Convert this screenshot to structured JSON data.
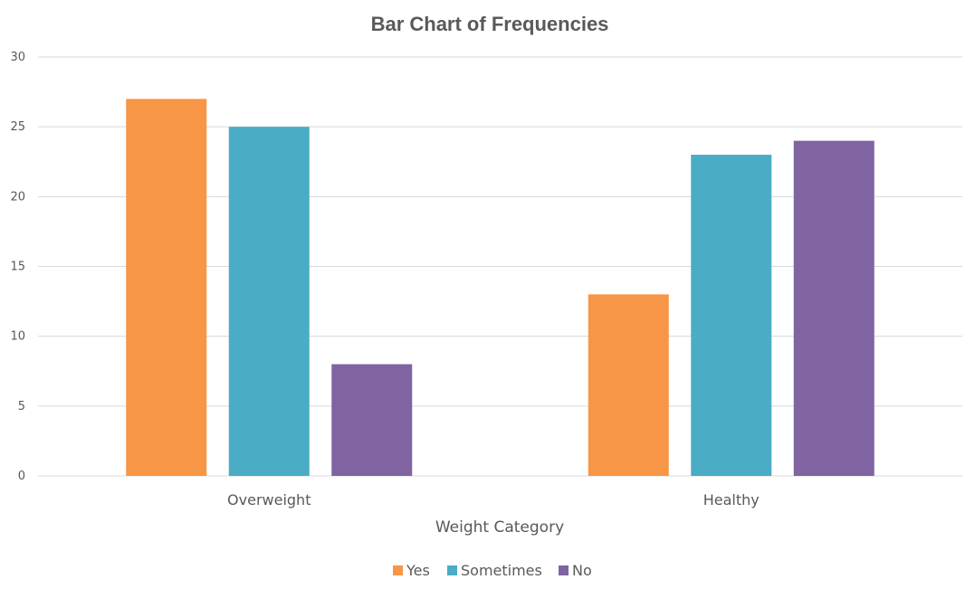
{
  "chart_data": {
    "type": "bar",
    "title": "Bar Chart of Frequencies",
    "xlabel": "Weight Category",
    "ylabel": "",
    "categories": [
      "Overweight",
      "Healthy"
    ],
    "series": [
      {
        "name": "Yes",
        "values": [
          27,
          13
        ],
        "color": "#F79646"
      },
      {
        "name": "Sometimes",
        "values": [
          25,
          23
        ],
        "color": "#4BACC6"
      },
      {
        "name": "No",
        "values": [
          8,
          24
        ],
        "color": "#8064A2"
      }
    ],
    "ylim": [
      0,
      30
    ],
    "yticks": [
      0,
      5,
      10,
      15,
      20,
      25,
      30
    ],
    "grid": true,
    "legend_position": "bottom"
  }
}
